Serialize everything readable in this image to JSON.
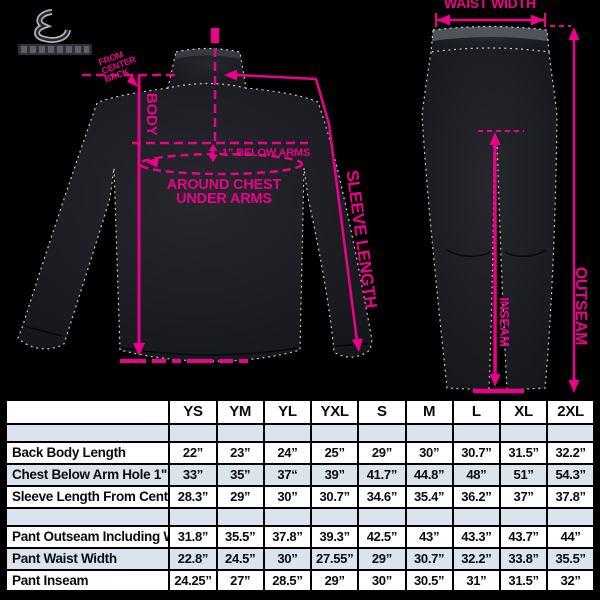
{
  "colors": {
    "background": "#000000",
    "pink": "#EC008C",
    "garment": "#1C1D22",
    "table_alt_row": "#D9E4EC",
    "table_border": "#000000"
  },
  "jacket": {
    "body_label": "BODY",
    "below_arms_label": "1” BELOW ARMS",
    "around_chest_line1": "AROUND CHEST",
    "around_chest_line2": "UNDER ARMS",
    "center_back_lines": [
      "FROM",
      "CENTER",
      "BACK"
    ],
    "sleeve_label": "SLEEVE LENGTH"
  },
  "pants": {
    "waist_label": "WAIST WIDTH",
    "outseam_label": "OUTSEAM",
    "inseam_label": "INSEAM"
  },
  "size_chart": {
    "columns": [
      "YS",
      "YM",
      "YL",
      "YXL",
      "S",
      "M",
      "L",
      "XL",
      "2XL"
    ],
    "rows": [
      {
        "label": "Back Body Length",
        "values": [
          "22”",
          "23”",
          "24”",
          "25”",
          "29”",
          "30”",
          "30.7”",
          "31.5”",
          "32.2”"
        ]
      },
      {
        "label": "Chest Below Arm Hole 1\"",
        "values": [
          "33”",
          "35”",
          "37“",
          "39”",
          "41.7”",
          "44.8”",
          "48”",
          "51”",
          "54.3”"
        ]
      },
      {
        "label": "Sleeve Length From Center Back",
        "values": [
          "28.3”",
          "29”",
          "30”",
          "30.7”",
          "34.6”",
          "35.4”",
          "36.2”",
          "37”",
          "37.8”"
        ]
      },
      {
        "label": "Pant Outseam Including Waist",
        "values": [
          "31.8”",
          "35.5”",
          "37.8”",
          "39.3”",
          "42.5”",
          "43”",
          "43.3”",
          "43.7”",
          "44”"
        ]
      },
      {
        "label": "Pant Waist Width",
        "values": [
          "22.8”",
          "24.5”",
          "30”",
          "27.55”",
          "29”",
          "30.7”",
          "32.2”",
          "33.8”",
          "35.5”"
        ]
      },
      {
        "label": "Pant Inseam",
        "values": [
          "24.25”",
          "27”",
          "28.5”",
          "29”",
          "30”",
          "30.5”",
          "31”",
          "31.5”",
          "32”"
        ]
      }
    ]
  }
}
